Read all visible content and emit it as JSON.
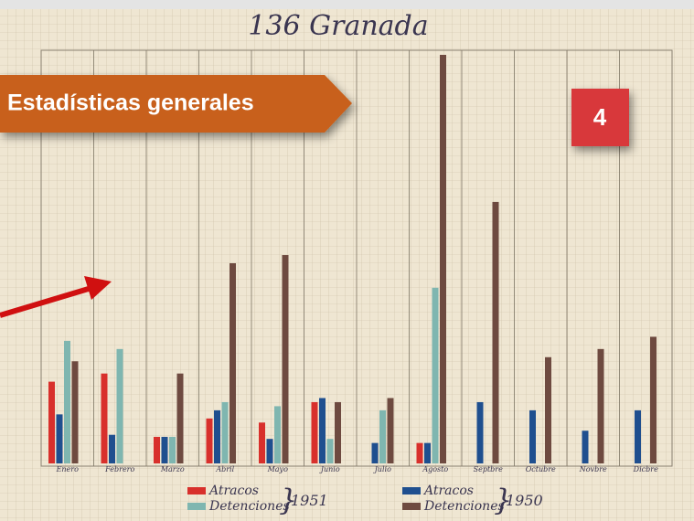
{
  "overlay": {
    "heading": "Estadísticas generales",
    "badge": "4"
  },
  "chart_data": {
    "type": "bar",
    "title": "136 Granada",
    "categories": [
      "Enero",
      "Febrero",
      "Marzo",
      "Abril",
      "Mayo",
      "Junio",
      "Julio",
      "Agosto",
      "Septbre",
      "Octubre",
      "Novbre",
      "Dicbre"
    ],
    "series": [
      {
        "name": "Atracos",
        "group": "1951",
        "color": "#d8302c",
        "values": [
          20,
          22,
          6.5,
          11,
          10,
          15,
          null,
          5,
          null,
          null,
          null,
          null
        ]
      },
      {
        "name": "Atracos",
        "group": "1950",
        "color": "#1f4f8f",
        "values": [
          12,
          7,
          6.5,
          13,
          6,
          16,
          5,
          5,
          15,
          13,
          8,
          13
        ]
      },
      {
        "name": "Detenciones",
        "group": "1951",
        "color": "#7fb6b0",
        "values": [
          30,
          28,
          6.5,
          15,
          14,
          6,
          13,
          43,
          null,
          null,
          null,
          null
        ]
      },
      {
        "name": "Detenciones",
        "group": "1950",
        "color": "#6e4a40",
        "values": [
          25,
          null,
          22,
          49,
          51,
          15,
          16,
          100,
          64,
          26,
          28,
          31
        ]
      }
    ]
  }
}
